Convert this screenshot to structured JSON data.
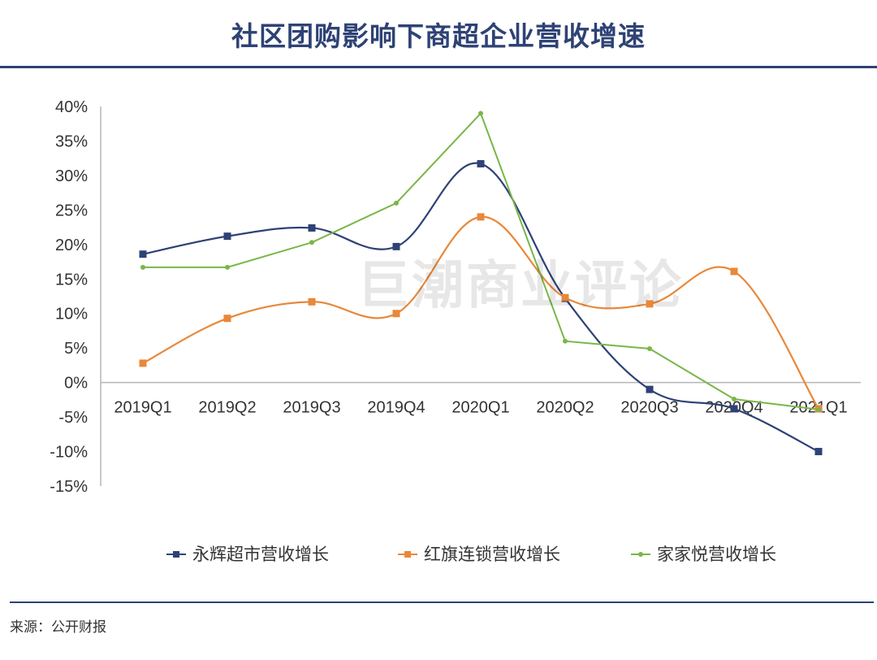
{
  "title": "社区团购影响下商超企业营收增速",
  "watermark": "巨潮商业评论",
  "source": "来源：公开财报",
  "chart_data": {
    "type": "line",
    "title": "社区团购影响下商超企业营收增速",
    "categories": [
      "2019Q1",
      "2019Q2",
      "2019Q3",
      "2019Q4",
      "2020Q1",
      "2020Q2",
      "2020Q3",
      "2020Q4",
      "2021Q1"
    ],
    "ylim": [
      -15,
      40
    ],
    "yticks": [
      40,
      35,
      30,
      25,
      20,
      15,
      10,
      5,
      0,
      -5,
      -10,
      -15
    ],
    "ytick_suffix": "%",
    "smooth": true,
    "legend_position": "bottom",
    "series": [
      {
        "name": "永辉超市营收增长",
        "color": "#2e4275",
        "marker": "square",
        "values": [
          18.6,
          21.2,
          22.4,
          19.7,
          31.7,
          12.2,
          -1.0,
          -3.8,
          -10.0
        ]
      },
      {
        "name": "红旗连锁营收增长",
        "color": "#e8883a",
        "marker": "square",
        "values": [
          2.8,
          9.3,
          11.7,
          10.0,
          24.0,
          12.3,
          11.4,
          16.1,
          -3.8
        ]
      },
      {
        "name": "家家悦营收增长",
        "color": "#7ab648",
        "marker": "dot",
        "values": [
          16.7,
          16.7,
          20.3,
          26.0,
          39.0,
          6.0,
          4.9,
          -2.4,
          -3.9
        ]
      }
    ]
  }
}
